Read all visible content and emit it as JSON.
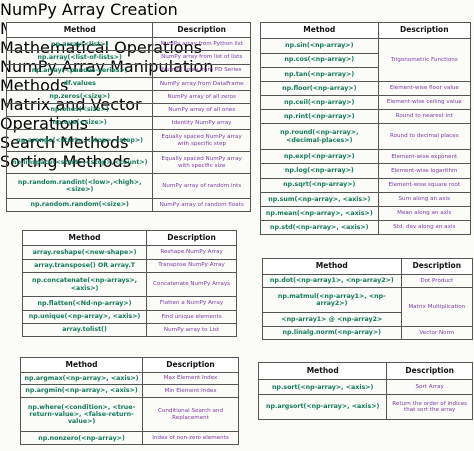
{
  "sections": [
    {
      "title": "NumPy Array Creation Methods",
      "header": [
        "Method",
        "Description"
      ],
      "rows": [
        {
          "methods": [
            "np.array(<list>)"
          ],
          "description": "NumPy array from Python list"
        },
        {
          "methods": [
            "np.array(<list-of-lists>)"
          ],
          "description": "NumPy array from list of lists"
        },
        {
          "methods": [
            "np.array(<pandas-series>)"
          ],
          "description": "NumPy array from PD Series"
        },
        {
          "methods": [
            "df.values"
          ],
          "description": "NumPy array from DataFrame"
        },
        {
          "methods": [
            "np.zeros(<size>)"
          ],
          "description": "NumPy array of all zeros"
        },
        {
          "methods": [
            "np.ones(<size>)"
          ],
          "description": "NumPy array of all ones"
        },
        {
          "methods": [
            "np.eye(<size>)"
          ],
          "description": "Identity NumPy array"
        },
        {
          "methods": [
            "np.arange(<start>,<stop>,<step>)"
          ],
          "description": "Equally spaced NumPy array with specific step"
        },
        {
          "methods": [
            "np.linspace(<start>,<stop>,<count>)"
          ],
          "description": "Equally spaced NumPy array with specific size"
        },
        {
          "methods": [
            "np.random.randint(<low>,<high>,<size>)"
          ],
          "description": "NumPy array of random ints"
        },
        {
          "methods": [
            "np.random.random(<size>)"
          ],
          "description": "NumPy array of random floats"
        }
      ]
    },
    {
      "title": "Mathematical Operations",
      "header": [
        "Method",
        "Description"
      ],
      "rows": [
        {
          "methods": [
            "np.sin(<np-array>)",
            "np.cos(<np-array>)",
            "np.tan(<np-array>)"
          ],
          "description": "Trigonometric Functions"
        },
        {
          "methods": [
            "np.floor(<np-array>)"
          ],
          "description": "Element-wise floor value"
        },
        {
          "methods": [
            "np.ceil(<np-array>)"
          ],
          "description": "Element-wise ceiling value"
        },
        {
          "methods": [
            "np.rint(<np-array>)"
          ],
          "description": "Round to nearest int"
        },
        {
          "methods": [
            "np.round(<np-array>, <decimal-places>)"
          ],
          "description": "Round to decimal places"
        },
        {
          "methods": [
            "np.exp(<np-array>)"
          ],
          "description": "Element-wise exponent"
        },
        {
          "methods": [
            "np.log(<np-array>)"
          ],
          "description": "Element-wise logarithm"
        },
        {
          "methods": [
            "np.sqrt(<np-array>)"
          ],
          "description": "Element-wise square root"
        },
        {
          "methods": [
            "np.sum(<np-array>, <axis>)"
          ],
          "description": "Sum along an axis"
        },
        {
          "methods": [
            "np.mean(<np-array>, <axis>)"
          ],
          "description": "Mean along an axis"
        },
        {
          "methods": [
            "np.std(<np-array>, <axis>)"
          ],
          "description": "Std. dev along an axis"
        }
      ]
    },
    {
      "title": "NumPy Array Manipulation Methods",
      "header": [
        "Method",
        "Description"
      ],
      "rows": [
        {
          "methods": [
            "array.reshape(<new-shape>)"
          ],
          "description": "Reshape NumPy Array"
        },
        {
          "methods": [
            "array.transpose() OR array.T"
          ],
          "description": "Transpose NumPy Array"
        },
        {
          "methods": [
            "np.concatenate(<np-arrays>, <axis>)"
          ],
          "description": "Concatenate NumPy Arrays"
        },
        {
          "methods": [
            "np.flatten(<Nd-np-array>)"
          ],
          "description": "Flatten a NumPy Array"
        },
        {
          "methods": [
            "np.unique(<np-array>, <axis>)"
          ],
          "description": "Find unique elements"
        },
        {
          "methods": [
            "array.tolist()"
          ],
          "description": "NumPy array to List"
        }
      ]
    },
    {
      "title": "Matrix and Vector Operations",
      "header": [
        "Method",
        "Description"
      ],
      "rows": [
        {
          "methods": [
            "np.dot(<np-array1>, <np-array2>)"
          ],
          "description": "Dot Product"
        },
        {
          "methods": [
            "np.matmul(<np-array1>, <np-array2>)",
            "<np-array1> @ <np-array2>"
          ],
          "description": "Matrix Multiplication"
        },
        {
          "methods": [
            "np.linalg.norm(<np-array>)"
          ],
          "description": "Vector Norm"
        }
      ]
    },
    {
      "title": "Search Methods",
      "header": [
        "Method",
        "Description"
      ],
      "rows": [
        {
          "methods": [
            "np.argmax(<np-array>, <axis>)"
          ],
          "description": "Max Element Index"
        },
        {
          "methods": [
            "np.argmin(<np-array>, <axis>)"
          ],
          "description": "Min Element Index"
        },
        {
          "methods": [
            "np.where(<condition>, <true-return-value>, <false-return-value>)"
          ],
          "description": "Conditional Search and Replacement"
        },
        {
          "methods": [
            "np.nonzero(<np-array>)"
          ],
          "description": "Index of non-zero elements"
        }
      ]
    },
    {
      "title": "Sorting Methods",
      "header": [
        "Method",
        "Description"
      ],
      "rows": [
        {
          "methods": [
            "np.sort(<np-array>, <axis>)"
          ],
          "description": "Sort Array"
        },
        {
          "methods": [
            "np.argsort(<np-array>, <axis>)"
          ],
          "description": "Return the order of indices that sort the array"
        }
      ]
    }
  ]
}
